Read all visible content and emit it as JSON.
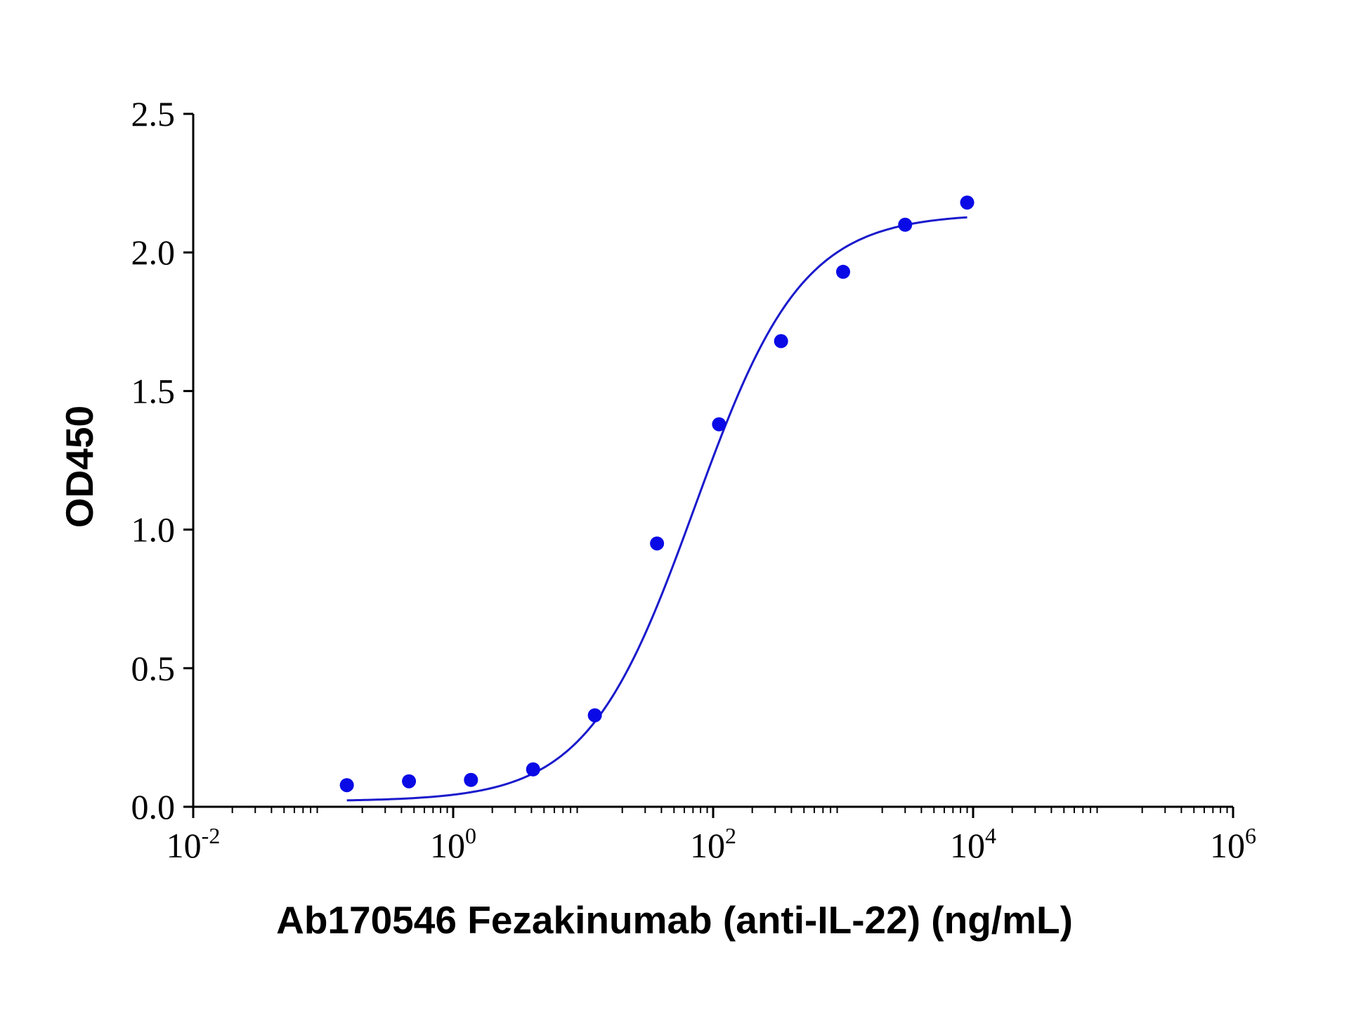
{
  "chart_data": {
    "type": "scatter",
    "xlabel": "Ab170546 Fezakinumab (anti-IL-22) (ng/mL)",
    "ylabel": "OD450",
    "x_scale": "log",
    "xlim": [
      0.01,
      1000000
    ],
    "ylim": [
      0,
      2.5
    ],
    "grid": false,
    "y_ticks": [
      {
        "value": 0.0,
        "label": "0.0"
      },
      {
        "value": 0.5,
        "label": "0.5"
      },
      {
        "value": 1.0,
        "label": "1.0"
      },
      {
        "value": 1.5,
        "label": "1.5"
      },
      {
        "value": 2.0,
        "label": "2.0"
      },
      {
        "value": 2.5,
        "label": "2.5"
      }
    ],
    "x_ticks": [
      {
        "value": 0.01,
        "base": "10",
        "exp": "-2"
      },
      {
        "value": 1,
        "base": "10",
        "exp": "0"
      },
      {
        "value": 100,
        "base": "10",
        "exp": "2"
      },
      {
        "value": 10000,
        "base": "10",
        "exp": "4"
      },
      {
        "value": 1000000,
        "base": "10",
        "exp": "6"
      }
    ],
    "series": [
      {
        "points": [
          {
            "x": 0.152,
            "y": 0.078
          },
          {
            "x": 0.457,
            "y": 0.092
          },
          {
            "x": 1.37,
            "y": 0.097
          },
          {
            "x": 4.12,
            "y": 0.135
          },
          {
            "x": 12.3,
            "y": 0.33
          },
          {
            "x": 37.0,
            "y": 0.95
          },
          {
            "x": 111,
            "y": 1.38
          },
          {
            "x": 333,
            "y": 1.68
          },
          {
            "x": 1000,
            "y": 1.93
          },
          {
            "x": 3000,
            "y": 2.1
          },
          {
            "x": 9000,
            "y": 2.18
          }
        ],
        "fit": {
          "model": "4PL",
          "bottom": 0.02,
          "top": 2.14,
          "ec50": 72,
          "hill": 1.05,
          "x_range": [
            0.152,
            9000
          ]
        }
      }
    ],
    "colors": {
      "series": "#0a0ae6",
      "fit_line": "#1a1acc",
      "axis": "#000000"
    }
  }
}
